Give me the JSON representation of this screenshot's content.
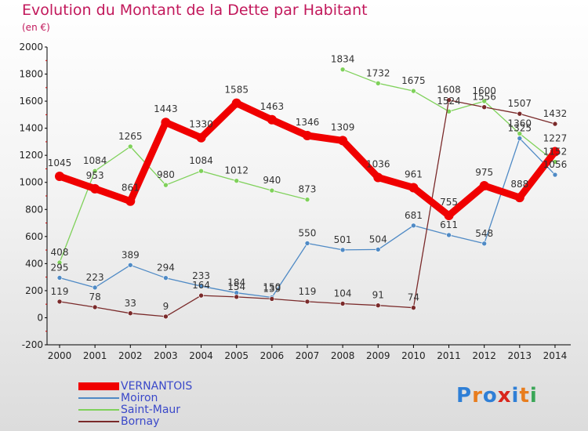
{
  "title": "Evolution du Montant de la Dette par Habitant",
  "subtitle": "(en €)",
  "logo": {
    "text": "Proxiti",
    "letters": [
      "P",
      "r",
      "o",
      "x",
      "i",
      "t",
      "i"
    ],
    "colors": [
      "#2f7fd6",
      "#e87d1e",
      "#2f7fd6",
      "#d9261c",
      "#2f7fd6",
      "#e87d1e",
      "#3aa657"
    ]
  },
  "chart_data": {
    "type": "line",
    "x": [
      "2000",
      "2001",
      "2002",
      "2003",
      "2004",
      "2005",
      "2006",
      "2007",
      "2008",
      "2009",
      "2010",
      "2011",
      "2012",
      "2013",
      "2014"
    ],
    "ylim": [
      -200,
      2000
    ],
    "yticks": [
      "-200",
      "0",
      "200",
      "400",
      "600",
      "800",
      "1000",
      "1200",
      "1400",
      "1600",
      "1800",
      "2000"
    ],
    "grid": false,
    "legend_position": "bottom-left",
    "series": [
      {
        "name": "VERNANTOIS",
        "color": "#f00000",
        "emphasis": true,
        "values": [
          1045,
          953,
          861,
          1443,
          1330,
          1585,
          1463,
          1346,
          1309,
          1036,
          961,
          755,
          975,
          888,
          1227
        ],
        "labels": [
          "1045",
          "953",
          "861",
          "1443",
          "1330",
          "1585",
          "1463",
          "1346",
          "1309",
          "1036",
          "961",
          "755",
          "975",
          "888",
          "1227"
        ]
      },
      {
        "name": "Moiron",
        "color": "#4f8ac5",
        "values": [
          295,
          223,
          389,
          294,
          233,
          184,
          150,
          550,
          501,
          504,
          681,
          611,
          548,
          1325,
          1056
        ],
        "labels": [
          "295",
          "223",
          "389",
          "294",
          "233",
          "184",
          "150",
          "550",
          "501",
          "504",
          "681",
          "611",
          "548",
          "1325",
          "1056"
        ]
      },
      {
        "name": "Saint-Maur",
        "color": "#7fd15a",
        "values": [
          408,
          1084,
          1265,
          980,
          1084,
          1012,
          940,
          873,
          null,
          null,
          null,
          null,
          null,
          null,
          null
        ],
        "labels": [
          "408",
          "1084",
          "1265",
          "980",
          "1084",
          "1012",
          "940",
          "873",
          null,
          null,
          null,
          null,
          null,
          null,
          null
        ]
      },
      {
        "name": "Saint-Maur",
        "color": "#7fd15a",
        "values": [
          null,
          null,
          null,
          null,
          null,
          null,
          null,
          null,
          1834,
          1732,
          1675,
          1524,
          1600,
          1360,
          1152
        ],
        "labels": [
          null,
          null,
          null,
          null,
          null,
          null,
          null,
          null,
          "1834",
          "1732",
          "1675",
          "1524",
          "1600",
          "1360",
          "1152"
        ]
      },
      {
        "name": "Bornay",
        "color": "#7a2a2a",
        "values": [
          119,
          78,
          33,
          9,
          164,
          154,
          139,
          119,
          104,
          91,
          74,
          1608,
          1556,
          1507,
          1432
        ],
        "labels": [
          "119",
          "78",
          "33",
          "9",
          "164",
          "154",
          "139",
          "119",
          "104",
          "91",
          "74",
          "1608",
          "1556",
          "1507",
          "1432"
        ]
      }
    ],
    "legend": [
      {
        "name": "VERNANTOIS",
        "color": "#f00000",
        "emphasis": true
      },
      {
        "name": "Moiron",
        "color": "#4f8ac5"
      },
      {
        "name": "Saint-Maur",
        "color": "#7fd15a"
      },
      {
        "name": "Bornay",
        "color": "#7a2a2a"
      }
    ]
  }
}
